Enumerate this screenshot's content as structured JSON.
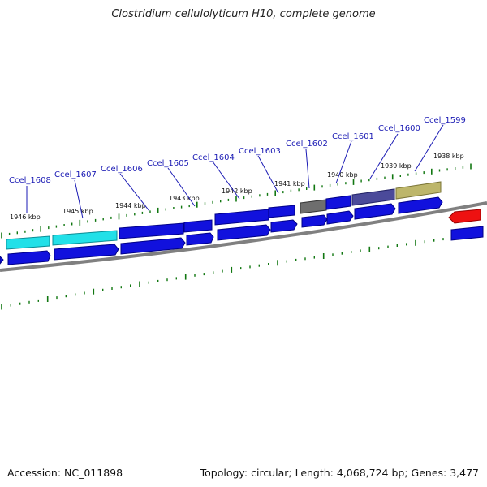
{
  "title": "Clostridium cellulolyticum H10, complete genome",
  "footer": {
    "accession": "Accession: NC_011898",
    "summary": "Topology: circular; Length: 4,068,724 bp; Genes: 3,477"
  },
  "colors": {
    "blue": "#1111dd",
    "cyan": "#22e0e8",
    "gray": "#6e6e6e",
    "purple": "#4b4a9a",
    "khaki": "#bdb66a",
    "red": "#ee1111",
    "tick": "#117711",
    "label": "#1a1ab4",
    "backbone": "#888888"
  },
  "kbp_labels": [
    "1946 kbp",
    "1945 kbp",
    "1944 kbp",
    "1943 kbp",
    "1942 kbp",
    "1941 kbp",
    "1940 kbp",
    "1939 kbp",
    "1938 kbp"
  ],
  "gene_labels": [
    "Ccel_1608",
    "Ccel_1607",
    "Ccel_1606",
    "Ccel_1605",
    "Ccel_1604",
    "Ccel_1603",
    "Ccel_1602",
    "Ccel_1601",
    "Ccel_1600",
    "Ccel_1599"
  ]
}
